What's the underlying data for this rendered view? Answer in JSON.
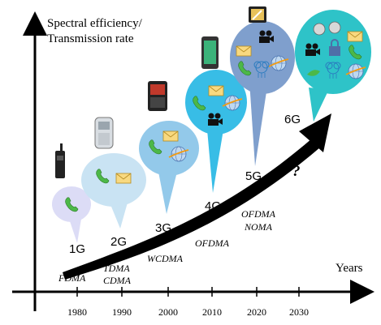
{
  "axes": {
    "y_label_line1": "Spectral efficiency/",
    "y_label_line2": "Transmission rate",
    "x_label": "Years",
    "years": [
      "1980",
      "1990",
      "2000",
      "2010",
      "2020",
      "2030"
    ]
  },
  "generations": [
    {
      "name": "1G",
      "tech": [
        "FDMA"
      ]
    },
    {
      "name": "2G",
      "tech": [
        "TDMA",
        "CDMA"
      ]
    },
    {
      "name": "3G",
      "tech": [
        "WCDMA"
      ]
    },
    {
      "name": "4G",
      "tech": [
        "OFDMA"
      ]
    },
    {
      "name": "5G",
      "tech": [
        "OFDMA",
        "NOMA"
      ]
    },
    {
      "name": "6G",
      "tech": []
    }
  ],
  "future_mark": "?",
  "colors": {
    "bubble_1g": "#dcdcf6",
    "bubble_2g": "#c9e3f3",
    "bubble_3g": "#93c9ea",
    "bubble_4g": "#38bde6",
    "bubble_5g": "#7f9fcd",
    "bubble_6g": "#2ec3c8",
    "arrow": "#000000"
  }
}
